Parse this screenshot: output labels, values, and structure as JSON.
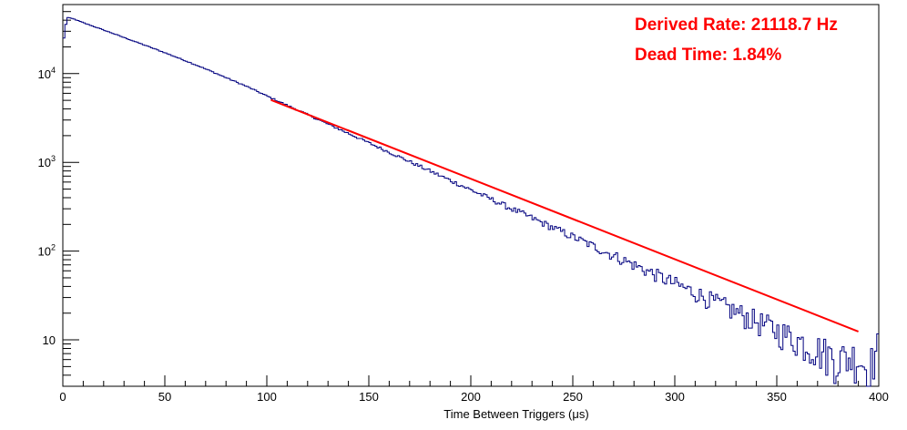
{
  "chart_data": {
    "type": "line",
    "title": "",
    "xlabel": "Time Between Triggers (μs)",
    "ylabel": "",
    "xlim": [
      0,
      400
    ],
    "ylim": [
      3,
      60000
    ],
    "y_scale": "log",
    "grid": false,
    "legend": "none",
    "x_ticks": [
      0,
      50,
      100,
      150,
      200,
      250,
      300,
      350,
      400
    ],
    "x_tick_labels": [
      "0",
      "50",
      "100",
      "150",
      "200",
      "250",
      "300",
      "350",
      "400"
    ],
    "y_ticks": [
      10,
      100,
      1000,
      10000
    ],
    "y_tick_labels": [
      {
        "base": "10",
        "exp": ""
      },
      {
        "base": "10",
        "exp": "2"
      },
      {
        "base": "10",
        "exp": "3"
      },
      {
        "base": "10",
        "exp": "4"
      }
    ],
    "series": [
      {
        "kind": "histogram",
        "color": "#00007f",
        "x": [
          0,
          2,
          5,
          10,
          20,
          30,
          40,
          50,
          60,
          70,
          80,
          90,
          100,
          110,
          120,
          130,
          140,
          150,
          160,
          170,
          180,
          190,
          200,
          210,
          220,
          230,
          240,
          250,
          260,
          270,
          280,
          290,
          300,
          310,
          320,
          330,
          340,
          350,
          360,
          370,
          380,
          390,
          395,
          400
        ],
        "y": [
          21000,
          43000,
          41500,
          37500,
          31000,
          25500,
          21000,
          17200,
          14000,
          11300,
          9000,
          7200,
          5600,
          4400,
          3450,
          2700,
          2120,
          1660,
          1300,
          1020,
          800,
          625,
          490,
          385,
          300,
          236,
          185,
          145,
          114,
          89,
          70,
          55,
          43,
          34,
          26.5,
          20.8,
          16.3,
          12.8,
          10,
          7.9,
          6.2,
          6.5,
          4.5,
          9
        ]
      },
      {
        "kind": "fit",
        "color": "#ff0000",
        "x": [
          102,
          390
        ],
        "y": [
          5050,
          12.4
        ]
      }
    ],
    "annotations": [
      {
        "text": "Derived Rate: 21118.7 Hz",
        "color": "#ff0000"
      },
      {
        "text": "Dead Time: 1.84%",
        "color": "#ff0000"
      }
    ]
  }
}
